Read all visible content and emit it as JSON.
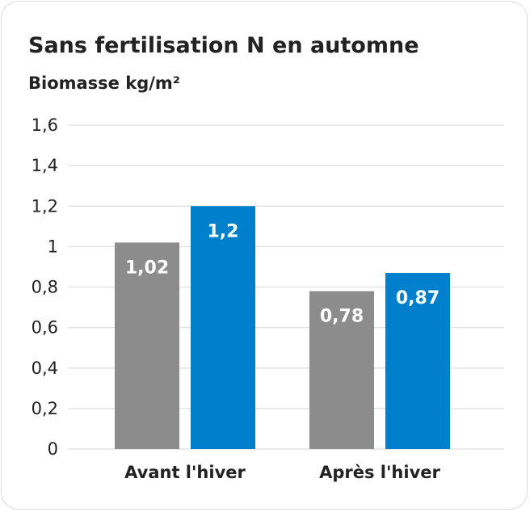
{
  "chart_data": {
    "type": "bar",
    "title": "Sans fertilisation N en automne",
    "ylabel": "Biomasse kg/m²",
    "xlabel": "",
    "categories": [
      "Avant l'hiver",
      "Après l'hiver"
    ],
    "series": [
      {
        "color": "#8c8c8c",
        "values": [
          1.02,
          0.78
        ],
        "labels": [
          "1,02",
          "0,78"
        ]
      },
      {
        "color": "#0080cc",
        "values": [
          1.2,
          0.87
        ],
        "labels": [
          "1,2",
          "0,87"
        ]
      }
    ],
    "ylim": [
      0,
      1.6
    ],
    "yticks": [
      0,
      0.2,
      0.4,
      0.6,
      0.8,
      1,
      1.2,
      1.4,
      1.6
    ],
    "ytick_labels": [
      "0",
      "0,2",
      "0,4",
      "0,6",
      "0,8",
      "1",
      "1,2",
      "1,4",
      "1,6"
    ],
    "grid": true,
    "gridline_color": "#e3e3e3"
  }
}
